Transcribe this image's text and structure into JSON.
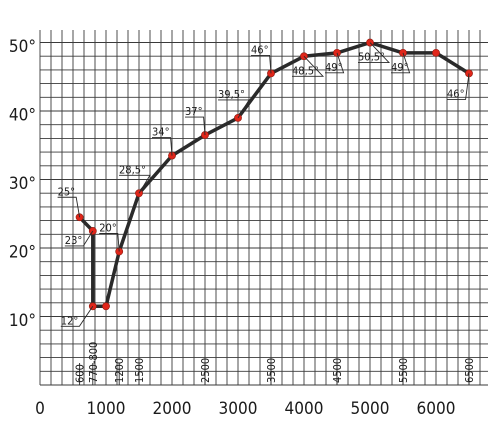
{
  "chart_data": {
    "type": "line",
    "title": "",
    "xlabel": "",
    "ylabel": "",
    "xlim": [
      0,
      6500
    ],
    "ylim": [
      5,
      50
    ],
    "grid": true,
    "x_tick_values": [
      0,
      1000,
      2000,
      3000,
      4000,
      5000,
      6000
    ],
    "x_tick_labels": [
      "0",
      "1000",
      "2000",
      "3000",
      "4000",
      "5000",
      "6000"
    ],
    "y_tick_values": [
      10,
      20,
      30,
      40,
      50
    ],
    "y_tick_labels": [
      "10°",
      "20°",
      "30°",
      "40°",
      "50°"
    ],
    "series": [
      {
        "color": "#e0261a",
        "points": [
          {
            "x": 600,
            "y": 25,
            "label": "25°"
          },
          {
            "x": 800,
            "y": 23,
            "label": "23°"
          },
          {
            "x": 800,
            "y": 12,
            "label": "12°"
          },
          {
            "x": 1000,
            "y": 12,
            "label": ""
          },
          {
            "x": 1200,
            "y": 20,
            "label": "20°"
          },
          {
            "x": 1500,
            "y": 28.5,
            "label": "28,5°"
          },
          {
            "x": 2000,
            "y": 34,
            "label": "34°"
          },
          {
            "x": 2500,
            "y": 37,
            "label": "37°"
          },
          {
            "x": 3000,
            "y": 39.5,
            "label": "39,5°"
          },
          {
            "x": 3500,
            "y": 46,
            "label": "46°"
          },
          {
            "x": 4000,
            "y": 48.5,
            "label": "48,5°"
          },
          {
            "x": 4500,
            "y": 49,
            "label": "49°"
          },
          {
            "x": 5000,
            "y": 50.5,
            "label": "50,5°"
          },
          {
            "x": 5500,
            "y": 49,
            "label": "49°"
          },
          {
            "x": 6000,
            "y": 49,
            "label": ""
          },
          {
            "x": 6500,
            "y": 46,
            "label": "46°"
          }
        ]
      }
    ],
    "axis_marks": [
      {
        "x": 600,
        "label": "600"
      },
      {
        "x": 800,
        "label": "770-800"
      },
      {
        "x": 1200,
        "label": "1200"
      },
      {
        "x": 1500,
        "label": "1500"
      },
      {
        "x": 2500,
        "label": "2500"
      },
      {
        "x": 3500,
        "label": "3500"
      },
      {
        "x": 4500,
        "label": "4500"
      },
      {
        "x": 5500,
        "label": "5500"
      },
      {
        "x": 6500,
        "label": "6500"
      }
    ]
  }
}
